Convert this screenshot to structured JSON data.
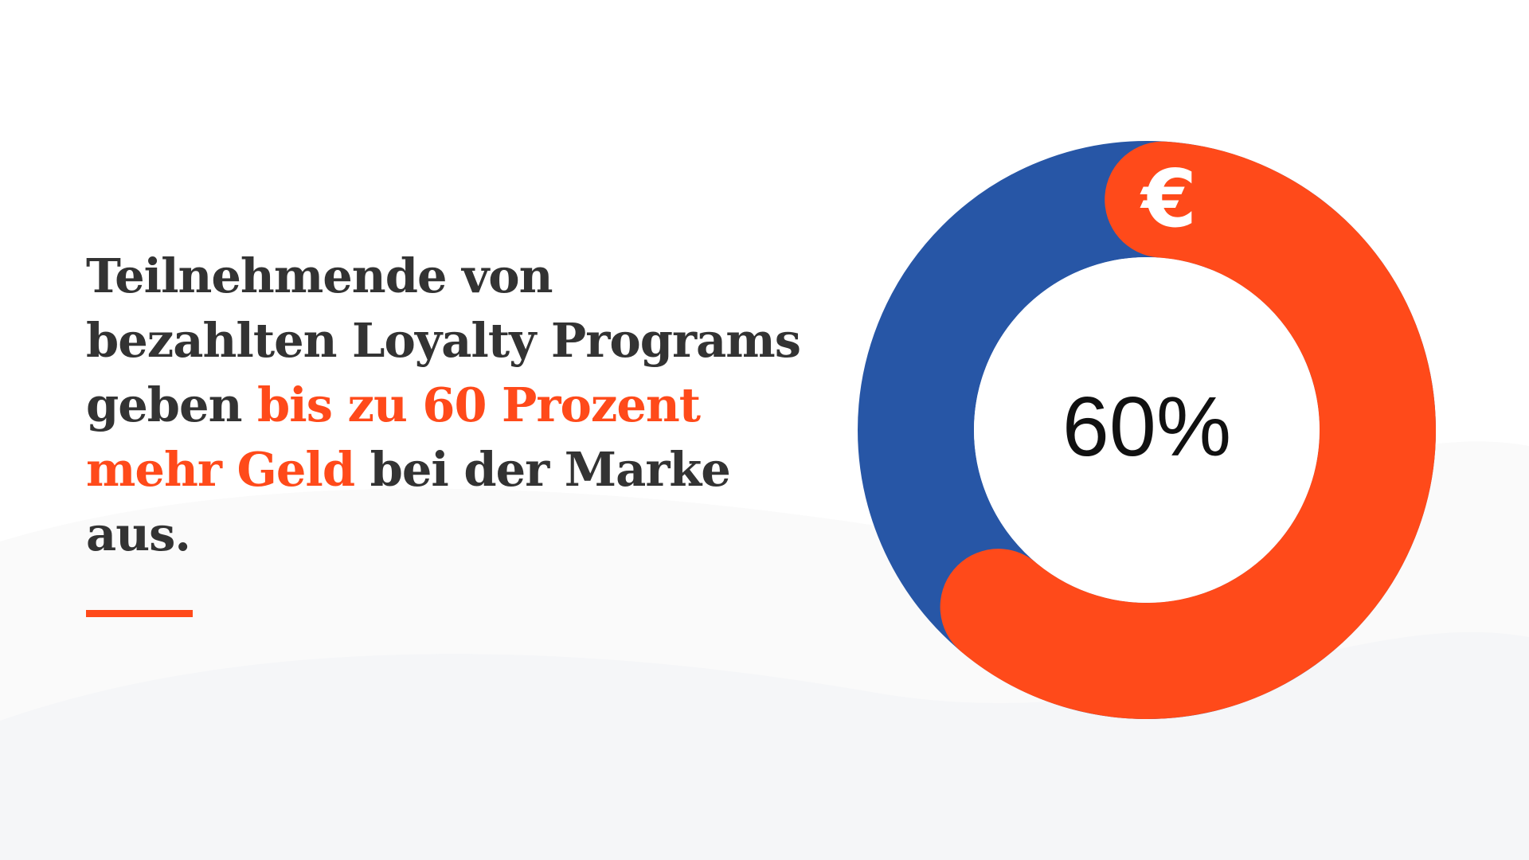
{
  "headline": {
    "before": "Teilnehmende von bezahlten Loyalty Programs geben ",
    "highlight": "bis zu 60 Prozent mehr Geld",
    "after": " bei der Marke aus."
  },
  "chart_data": {
    "type": "pie",
    "variant": "donut",
    "center_label": "60%",
    "icon": "euro-icon",
    "icon_glyph": "€",
    "slices": [
      {
        "value": 60,
        "color": "#ff4a1a"
      },
      {
        "value": 40,
        "color": "#2756a6"
      }
    ]
  },
  "colors": {
    "accent": "#ff4a1a",
    "secondary": "#2756a6",
    "text": "#333333",
    "center_text": "#111111",
    "background_wave": "#f4f5f7"
  }
}
